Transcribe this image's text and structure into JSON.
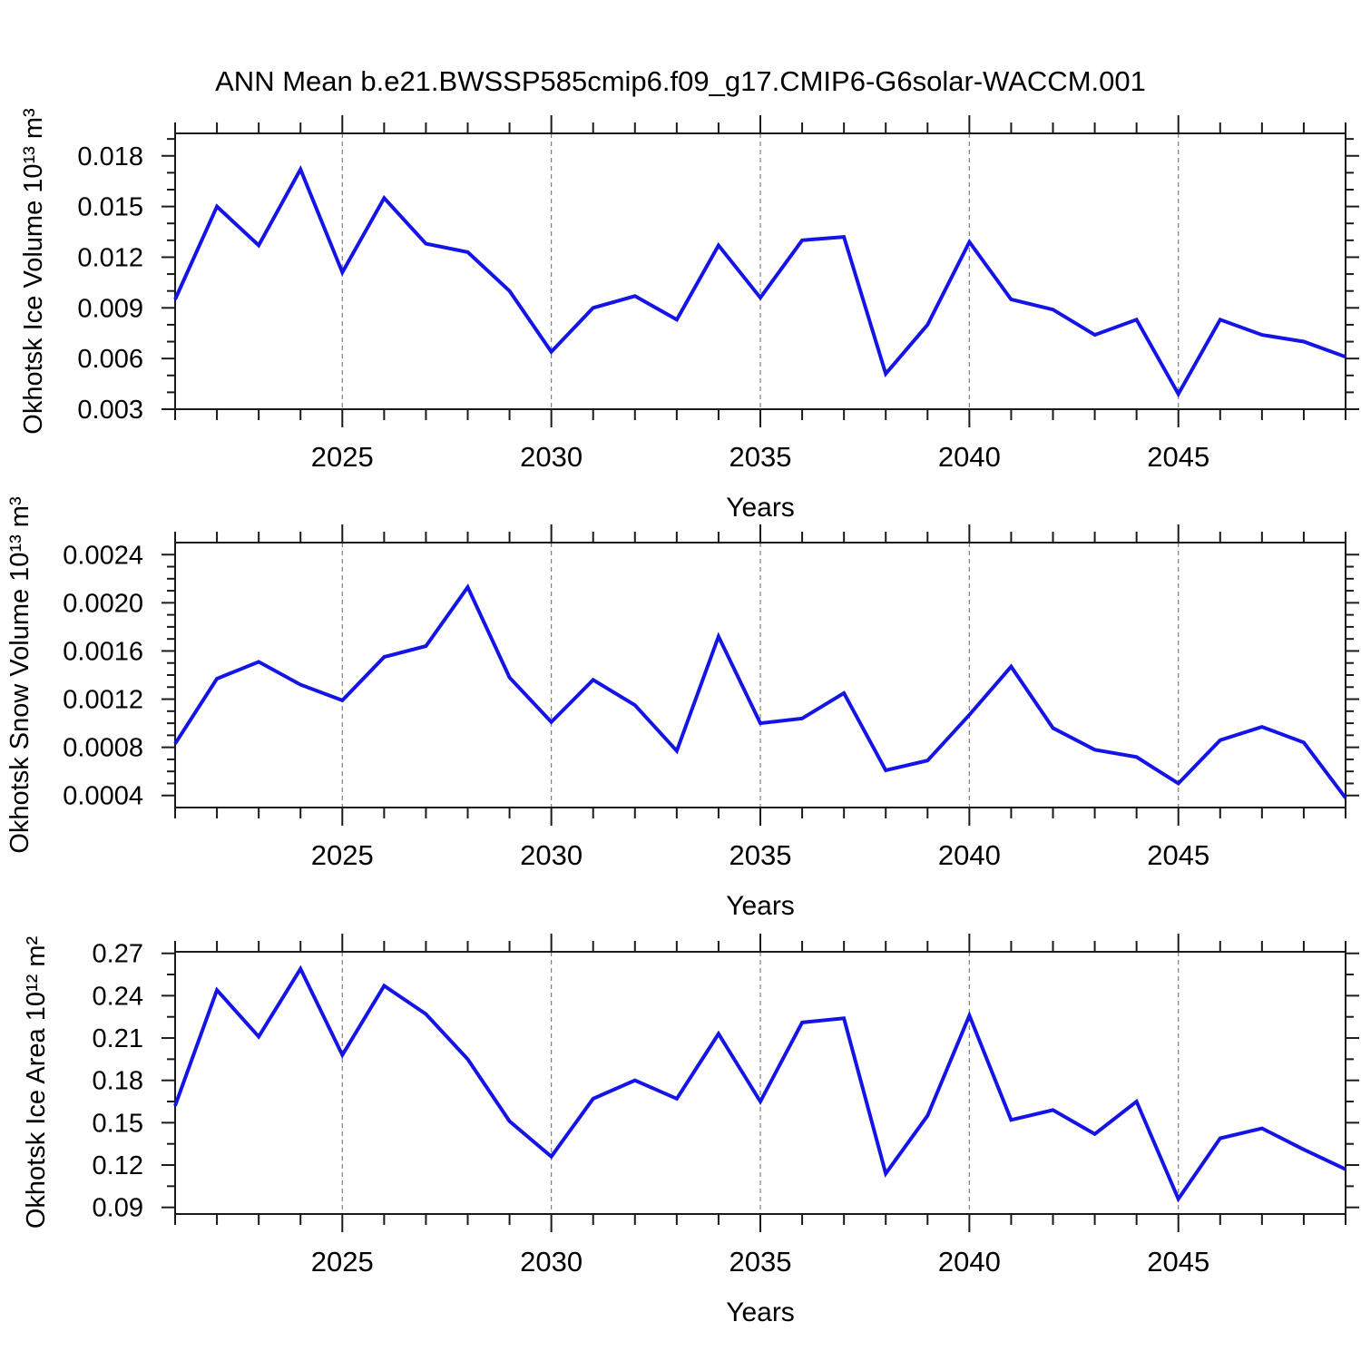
{
  "title": "ANN Mean b.e21.BWSSP585cmip6.f09_g17.CMIP6-G6solar-WACCM.001",
  "colors": {
    "line": "#1414e6",
    "grid": "#808080",
    "axis": "#1a1a1a"
  },
  "chart_data": [
    {
      "type": "line",
      "ylabel": "Okhotsk Ice Volume 10¹³ m³",
      "xlabel": "Years",
      "x": [
        2021,
        2022,
        2023,
        2024,
        2025,
        2026,
        2027,
        2028,
        2029,
        2030,
        2031,
        2032,
        2033,
        2034,
        2035,
        2036,
        2037,
        2038,
        2039,
        2040,
        2041,
        2042,
        2043,
        2044,
        2045,
        2046,
        2047,
        2048,
        2049
      ],
      "values": [
        0.0095,
        0.015,
        0.0127,
        0.0172,
        0.0111,
        0.0155,
        0.0128,
        0.0123,
        0.01,
        0.0064,
        0.009,
        0.0097,
        0.0083,
        0.0127,
        0.0096,
        0.013,
        0.0132,
        0.0051,
        0.008,
        0.0129,
        0.0095,
        0.0089,
        0.0074,
        0.0083,
        0.0039,
        0.0083,
        0.0074,
        0.007,
        0.0061
      ],
      "xlim": [
        2021,
        2049
      ],
      "ylim": [
        0.003,
        0.01933
      ],
      "xticks_major": [
        2025,
        2030,
        2035,
        2040,
        2045
      ],
      "xtick_labels": [
        "2025",
        "2030",
        "2035",
        "2040",
        "2045"
      ],
      "xticks_minor_step": 1,
      "grid_x": [
        2025,
        2030,
        2035,
        2040,
        2045
      ],
      "yticks_major": [
        0.003,
        0.006,
        0.009,
        0.012,
        0.015,
        0.018
      ],
      "ytick_labels": [
        "0.003",
        "0.006",
        "0.009",
        "0.012",
        "0.015",
        "0.018"
      ],
      "yticks_minor_step": 0.001,
      "grid_on": "x-dashed"
    },
    {
      "type": "line",
      "ylabel": "Okhotsk Snow Volume 10¹³ m³",
      "xlabel": "Years",
      "x": [
        2021,
        2022,
        2023,
        2024,
        2025,
        2026,
        2027,
        2028,
        2029,
        2030,
        2031,
        2032,
        2033,
        2034,
        2035,
        2036,
        2037,
        2038,
        2039,
        2040,
        2041,
        2042,
        2043,
        2044,
        2045,
        2046,
        2047,
        2048,
        2049
      ],
      "values": [
        0.00083,
        0.00137,
        0.00151,
        0.00132,
        0.00119,
        0.00155,
        0.00164,
        0.00213,
        0.00138,
        0.00101,
        0.00136,
        0.00115,
        0.00077,
        0.00172,
        0.001,
        0.00104,
        0.00125,
        0.00061,
        0.00069,
        0.00107,
        0.00147,
        0.00096,
        0.00078,
        0.00072,
        0.0005,
        0.00086,
        0.00097,
        0.00084,
        0.00038
      ],
      "xlim": [
        2021,
        2049
      ],
      "ylim": [
        0.0003,
        0.0025
      ],
      "xticks_major": [
        2025,
        2030,
        2035,
        2040,
        2045
      ],
      "xtick_labels": [
        "2025",
        "2030",
        "2035",
        "2040",
        "2045"
      ],
      "xticks_minor_step": 1,
      "grid_x": [
        2025,
        2030,
        2035,
        2040,
        2045
      ],
      "yticks_major": [
        0.0004,
        0.0008,
        0.0012,
        0.0016,
        0.002,
        0.0024
      ],
      "ytick_labels": [
        "0.0004",
        "0.0008",
        "0.0012",
        "0.0016",
        "0.0020",
        "0.0024"
      ],
      "yticks_minor_step": 0.0001,
      "grid_on": "x-dashed"
    },
    {
      "type": "line",
      "ylabel": "Okhotsk Ice Area 10¹² m²",
      "xlabel": "Years",
      "x": [
        2021,
        2022,
        2023,
        2024,
        2025,
        2026,
        2027,
        2028,
        2029,
        2030,
        2031,
        2032,
        2033,
        2034,
        2035,
        2036,
        2037,
        2038,
        2039,
        2040,
        2041,
        2042,
        2043,
        2044,
        2045,
        2046,
        2047,
        2048,
        2049
      ],
      "values": [
        0.162,
        0.244,
        0.211,
        0.259,
        0.198,
        0.247,
        0.227,
        0.195,
        0.151,
        0.126,
        0.167,
        0.18,
        0.167,
        0.213,
        0.165,
        0.221,
        0.224,
        0.114,
        0.155,
        0.226,
        0.152,
        0.159,
        0.142,
        0.165,
        0.096,
        0.139,
        0.146,
        0.131,
        0.117
      ],
      "xlim": [
        2021,
        2049
      ],
      "ylim": [
        0.0853,
        0.2711
      ],
      "xticks_major": [
        2025,
        2030,
        2035,
        2040,
        2045
      ],
      "xtick_labels": [
        "2025",
        "2030",
        "2035",
        "2040",
        "2045"
      ],
      "xticks_minor_step": 1,
      "grid_x": [
        2025,
        2030,
        2035,
        2040,
        2045
      ],
      "yticks_major": [
        0.09,
        0.12,
        0.15,
        0.18,
        0.21,
        0.24,
        0.27
      ],
      "ytick_labels": [
        "0.09",
        "0.12",
        "0.15",
        "0.18",
        "0.21",
        "0.24",
        "0.27"
      ],
      "yticks_minor_step": 0.015,
      "grid_on": "x-dashed"
    }
  ]
}
